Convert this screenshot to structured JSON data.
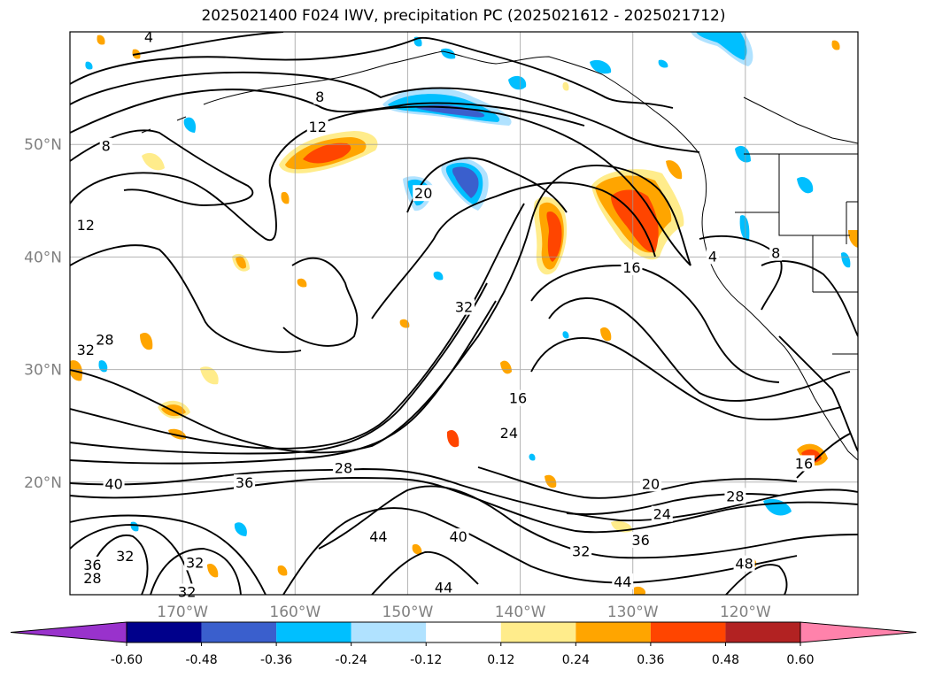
{
  "title": "2025021400 F024 IWV, precipitation PC (2025021612 - 2025021712)",
  "map": {
    "projection": "PlateCarree",
    "lon_range": [
      -180,
      -110
    ],
    "lat_range": [
      10,
      60
    ],
    "lat_ticks": [
      {
        "value": 50,
        "label": "50°N"
      },
      {
        "value": 40,
        "label": "40°N"
      },
      {
        "value": 30,
        "label": "30°N"
      },
      {
        "value": 20,
        "label": "20°N"
      }
    ],
    "lon_ticks": [
      {
        "value": -170,
        "label": "170°W"
      },
      {
        "value": -160,
        "label": "160°W"
      },
      {
        "value": -150,
        "label": "150°W"
      },
      {
        "value": -140,
        "label": "140°W"
      },
      {
        "value": -130,
        "label": "130°W"
      },
      {
        "value": -120,
        "label": "120°W"
      }
    ],
    "grid": true,
    "contour_labels": [
      {
        "text": "4",
        "lon": -173,
        "lat": 59.5
      },
      {
        "text": "8",
        "lon": -157.8,
        "lat": 54.2
      },
      {
        "text": "12",
        "lon": -158,
        "lat": 51.5
      },
      {
        "text": "8",
        "lon": -176.8,
        "lat": 49.8
      },
      {
        "text": "12",
        "lon": -178.6,
        "lat": 42.8
      },
      {
        "text": "20",
        "lon": -148.6,
        "lat": 45.6
      },
      {
        "text": "16",
        "lon": -130.1,
        "lat": 39
      },
      {
        "text": "4",
        "lon": -122.9,
        "lat": 40
      },
      {
        "text": "8",
        "lon": -117.3,
        "lat": 40.3
      },
      {
        "text": "32",
        "lon": -145,
        "lat": 35.5
      },
      {
        "text": "28",
        "lon": -176.9,
        "lat": 32.6
      },
      {
        "text": "32",
        "lon": -178.6,
        "lat": 31.7
      },
      {
        "text": "16",
        "lon": -140.2,
        "lat": 27.4
      },
      {
        "text": "24",
        "lon": -141,
        "lat": 24.3
      },
      {
        "text": "28",
        "lon": -155.7,
        "lat": 21.2
      },
      {
        "text": "36",
        "lon": -164.5,
        "lat": 19.9
      },
      {
        "text": "40",
        "lon": -176.1,
        "lat": 19.8
      },
      {
        "text": "20",
        "lon": -128.4,
        "lat": 19.8
      },
      {
        "text": "28",
        "lon": -120.9,
        "lat": 18.7
      },
      {
        "text": "24",
        "lon": -127.4,
        "lat": 17.1
      },
      {
        "text": "44",
        "lon": -152.6,
        "lat": 15.1
      },
      {
        "text": "40",
        "lon": -145.5,
        "lat": 15.1
      },
      {
        "text": "36",
        "lon": -129.3,
        "lat": 14.8
      },
      {
        "text": "32",
        "lon": -134.6,
        "lat": 13.8
      },
      {
        "text": "16",
        "lon": -114.8,
        "lat": 21.6
      },
      {
        "text": "36",
        "lon": -178,
        "lat": 12.6
      },
      {
        "text": "32",
        "lon": -175.1,
        "lat": 13.4
      },
      {
        "text": "32",
        "lon": -168.9,
        "lat": 12.8
      },
      {
        "text": "28",
        "lon": -178,
        "lat": 11.4
      },
      {
        "text": "48",
        "lon": -120.1,
        "lat": 12.7
      },
      {
        "text": "44",
        "lon": -130.9,
        "lat": 11.1
      },
      {
        "text": "44",
        "lon": -146.8,
        "lat": 10.6
      },
      {
        "text": "32",
        "lon": -169.6,
        "lat": 10.2
      }
    ]
  },
  "colorbar": {
    "ticks": [
      "-0.60",
      "-0.48",
      "-0.36",
      "-0.24",
      "-0.12",
      "0.12",
      "0.24",
      "0.36",
      "0.48",
      "0.60"
    ],
    "colors": {
      "under": "#9932cc",
      "bins": [
        "#00008b",
        "#3a5fcd",
        "#00bfff",
        "#b0e2ff",
        "#ffffff",
        "#ffec8b",
        "#ffa500",
        "#ff4500",
        "#b22222"
      ],
      "over": "#ff82ab"
    }
  }
}
